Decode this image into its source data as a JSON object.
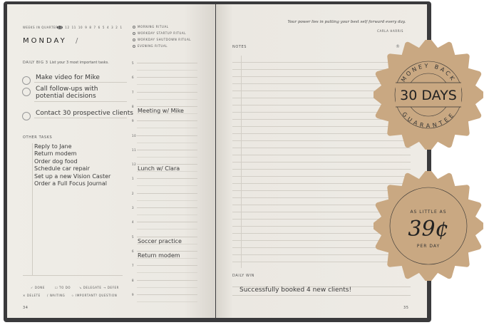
{
  "left_page": {
    "weeks_label": "WEEKS IN QUARTER",
    "weeks": [
      "13",
      "12",
      "11",
      "10",
      "9",
      "8",
      "7",
      "6",
      "5",
      "4",
      "3",
      "2",
      "1"
    ],
    "day": "MONDAY",
    "date_sep": "/",
    "rituals": [
      "MORNING RITUAL",
      "WORKDAY STARTUP RITUAL",
      "WORKDAY SHUTDOWN RITUAL",
      "EVENING RITUAL"
    ],
    "big3_label": "DAILY BIG 3",
    "big3_hint": "List your 3 most important tasks.",
    "big3": [
      "Make video for Mike",
      "Call follow-ups with\npotential decisions",
      "Contact 30 prospective clients"
    ],
    "other_label": "OTHER TASKS",
    "other_tasks": [
      "Reply to Jane",
      "Return modem",
      "Order dog food",
      "Schedule car repair",
      "Set up a new Vision Caster",
      "Order a Full Focus Journal"
    ],
    "hours": [
      "5",
      "6",
      "7",
      "8",
      "9",
      "10",
      "11",
      "12",
      "1",
      "2",
      "3",
      "4",
      "5",
      "6",
      "7",
      "8",
      "9"
    ],
    "appointments": [
      {
        "hour_index": 3,
        "text": "Meeting w/ Mike"
      },
      {
        "hour_index": 7,
        "text": "Lunch w/ Clara"
      },
      {
        "hour_index": 12,
        "text": "Soccer practice"
      },
      {
        "hour_index": 13,
        "text": "Return modem"
      }
    ],
    "legend": [
      [
        "✓ DONE",
        "☐ TO DO",
        "↘ DELEGATE",
        "→ DEFER"
      ],
      [
        "✕ DELETE",
        "/ WAITING",
        "☆ IMPORTANT",
        "? QUESTION"
      ]
    ],
    "page_number": "34"
  },
  "right_page": {
    "quote": "Your power lies in putting your best self forward every day.",
    "quote_author": "CARLA HARRIS",
    "notes_label": "NOTES",
    "daily_win_label": "DAILY WIN",
    "daily_win": "Successfully booked 4 new clients!",
    "page_number": "35"
  },
  "badges": {
    "guarantee": {
      "top": "MONEY BACK",
      "main": "30 DAYS",
      "bottom": "GUARANTEE"
    },
    "price": {
      "top": "AS LITTLE AS",
      "main": "39¢",
      "bottom": "PER DAY"
    },
    "color": "#c9a882"
  }
}
